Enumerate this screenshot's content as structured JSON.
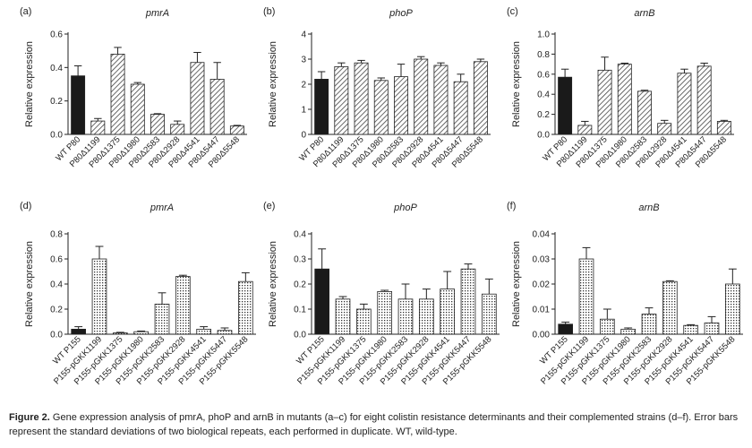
{
  "caption": {
    "label": "Figure 2.",
    "text": "Gene expression analysis of pmrA, phoP and arnB in mutants (a–c) for eight colistin resistance determinants and their complemented strains (d–f). Error bars represent the standard deviations of two biological repeats, each performed in duplicate. WT, wild-type."
  },
  "colors": {
    "wt_bar": "#1a1a1a",
    "axis": "#222222",
    "text": "#222222"
  },
  "chart_data": [
    {
      "panel": "(a)",
      "type": "bar",
      "title": "pmrA",
      "ylabel": "Relative expression",
      "ylim": [
        0,
        0.6
      ],
      "yticks": [
        "0.0",
        "0.2",
        "0.4",
        "0.6"
      ],
      "ytick_values": [
        0,
        0.2,
        0.4,
        0.6
      ],
      "pattern": "diag",
      "categories": [
        "WT P80",
        "P80Δ1199",
        "P80Δ1375",
        "P80Δ1980",
        "P80Δ2583",
        "P80Δ2928",
        "P80Δ4541",
        "P80Δ5447",
        "P80Δ5548"
      ],
      "values": [
        0.35,
        0.08,
        0.48,
        0.3,
        0.12,
        0.06,
        0.43,
        0.33,
        0.05
      ],
      "errors": [
        0.06,
        0.015,
        0.04,
        0.01,
        0.004,
        0.02,
        0.06,
        0.1,
        0.004
      ]
    },
    {
      "panel": "(b)",
      "type": "bar",
      "title": "phoP",
      "ylabel": "Relative expression",
      "ylim": [
        0,
        4
      ],
      "yticks": [
        "0",
        "1",
        "2",
        "3",
        "4"
      ],
      "ytick_values": [
        0,
        1,
        2,
        3,
        4
      ],
      "pattern": "diag",
      "categories": [
        "WT P80",
        "P80Δ1199",
        "P80Δ1375",
        "P80Δ1980",
        "P80Δ2583",
        "P80Δ2928",
        "P80Δ4541",
        "P80Δ5447",
        "P80Δ5548"
      ],
      "values": [
        2.2,
        2.7,
        2.85,
        2.15,
        2.3,
        3.0,
        2.75,
        2.1,
        2.9
      ],
      "errors": [
        0.3,
        0.15,
        0.1,
        0.1,
        0.5,
        0.1,
        0.1,
        0.3,
        0.1
      ]
    },
    {
      "panel": "(c)",
      "type": "bar",
      "title": "arnB",
      "ylabel": "Relative expression",
      "ylim": [
        0,
        1.0
      ],
      "yticks": [
        "0.0",
        "0.2",
        "0.4",
        "0.6",
        "0.8",
        "1.0"
      ],
      "ytick_values": [
        0,
        0.2,
        0.4,
        0.6,
        0.8,
        1.0
      ],
      "pattern": "diag",
      "categories": [
        "WT P80",
        "P80Δ1199",
        "P80Δ1375",
        "P80Δ1980",
        "P80Δ2583",
        "P80Δ2928",
        "P80Δ4541",
        "P80Δ5447",
        "P80Δ5548"
      ],
      "values": [
        0.57,
        0.09,
        0.64,
        0.7,
        0.43,
        0.11,
        0.61,
        0.68,
        0.13
      ],
      "errors": [
        0.08,
        0.04,
        0.13,
        0.01,
        0.01,
        0.03,
        0.04,
        0.03,
        0.01
      ]
    },
    {
      "panel": "(d)",
      "type": "bar",
      "title": "pmrA",
      "ylabel": "Relative expression",
      "ylim": [
        0,
        0.8
      ],
      "yticks": [
        "0.0",
        "0.2",
        "0.4",
        "0.6",
        "0.8"
      ],
      "ytick_values": [
        0,
        0.2,
        0.4,
        0.6,
        0.8
      ],
      "pattern": "dots",
      "categories": [
        "WT P155",
        "P155-pGKK1199",
        "P155-pGKK1375",
        "P155-pGKK1980",
        "P155-pGKK2583",
        "P155-pGKK2928",
        "P155-pGKK4541",
        "P155-pGKK5447",
        "P155-pGKK5548"
      ],
      "values": [
        0.04,
        0.6,
        0.01,
        0.02,
        0.24,
        0.46,
        0.04,
        0.03,
        0.42
      ],
      "errors": [
        0.02,
        0.1,
        0.005,
        0.005,
        0.09,
        0.01,
        0.02,
        0.02,
        0.07
      ]
    },
    {
      "panel": "(e)",
      "type": "bar",
      "title": "phoP",
      "ylabel": "Relative expression",
      "ylim": [
        0,
        0.4
      ],
      "yticks": [
        "0.0",
        "0.1",
        "0.2",
        "0.3",
        "0.4"
      ],
      "ytick_values": [
        0,
        0.1,
        0.2,
        0.3,
        0.4
      ],
      "pattern": "dots",
      "categories": [
        "WT P155",
        "P155-pGKK1199",
        "P155-pGKK1375",
        "P155-pGKK1980",
        "P155-pGKK2583",
        "P155-pGKK2928",
        "P155-pGKK4541",
        "P155-pGKK5447",
        "P155-pGKK5548"
      ],
      "values": [
        0.26,
        0.14,
        0.1,
        0.17,
        0.14,
        0.14,
        0.18,
        0.26,
        0.16
      ],
      "errors": [
        0.08,
        0.01,
        0.02,
        0.005,
        0.06,
        0.04,
        0.07,
        0.02,
        0.06
      ]
    },
    {
      "panel": "(f)",
      "type": "bar",
      "title": "arnB",
      "ylabel": "Relative expression",
      "ylim": [
        0,
        0.04
      ],
      "yticks": [
        "0.00",
        "0.01",
        "0.02",
        "0.03",
        "0.04"
      ],
      "ytick_values": [
        0,
        0.01,
        0.02,
        0.03,
        0.04
      ],
      "pattern": "dots",
      "categories": [
        "WT P155",
        "P155-pGKK1199",
        "P155-pGKK1375",
        "P155-pGKK1980",
        "P155-pGKK2583",
        "P155-pGKK2928",
        "P155-pGKK4541",
        "P155-pGKK5447",
        "P155-pGKK5548"
      ],
      "values": [
        0.004,
        0.03,
        0.006,
        0.002,
        0.008,
        0.021,
        0.0035,
        0.0045,
        0.02
      ],
      "errors": [
        0.0008,
        0.0045,
        0.004,
        0.0005,
        0.0025,
        0.0003,
        0.0003,
        0.0025,
        0.006
      ]
    }
  ]
}
